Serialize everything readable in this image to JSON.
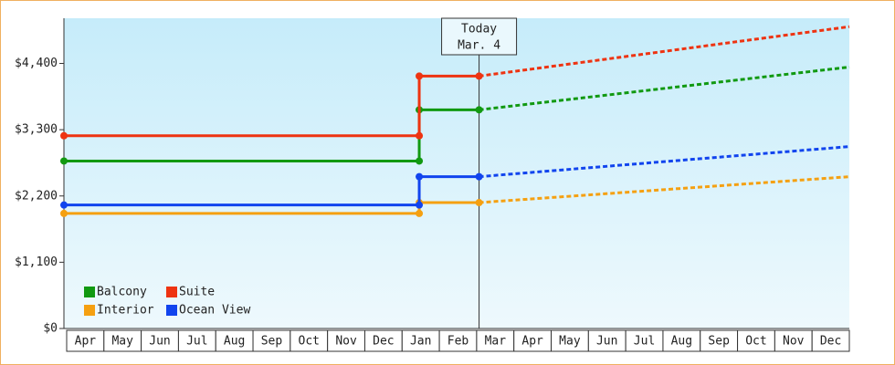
{
  "chart_data": {
    "type": "step-line",
    "categories": [
      "Apr",
      "May",
      "Jun",
      "Jul",
      "Aug",
      "Sep",
      "Oct",
      "Nov",
      "Dec",
      "Jan",
      "Feb",
      "Mar",
      "Apr",
      "May",
      "Jun",
      "Jul",
      "Aug",
      "Sep",
      "Oct",
      "Nov",
      "Dec"
    ],
    "xlim": [
      0,
      21
    ],
    "ylim": [
      0,
      5150
    ],
    "yticks": [
      {
        "value": 0,
        "label": "$0"
      },
      {
        "value": 1100,
        "label": "$1,100"
      },
      {
        "value": 2200,
        "label": "$2,200"
      },
      {
        "value": 3300,
        "label": "$3,300"
      },
      {
        "value": 4400,
        "label": "$4,400"
      }
    ],
    "annotation": {
      "x": 11.1,
      "lines": [
        "Today",
        "Mar. 4"
      ]
    },
    "legend": "lower left",
    "series": [
      {
        "name": "Balcony",
        "color": "#119911",
        "x": [
          0,
          9.5,
          9.5,
          11.1
        ],
        "values": [
          2780,
          2780,
          3630,
          3630
        ],
        "forecast_x": [
          11.1,
          21
        ],
        "forecast": [
          3630,
          4340
        ]
      },
      {
        "name": "Suite",
        "color": "#ee3311",
        "x": [
          0,
          9.5,
          9.5,
          11.1
        ],
        "values": [
          3200,
          3200,
          4190,
          4190
        ],
        "forecast_x": [
          11.1,
          21
        ],
        "forecast": [
          4190,
          5010
        ]
      },
      {
        "name": "Interior",
        "color": "#f5a011",
        "x": [
          0,
          9.5,
          9.5,
          11.1
        ],
        "values": [
          1910,
          1910,
          2090,
          2090
        ],
        "forecast_x": [
          11.1,
          21
        ],
        "forecast": [
          2090,
          2520
        ]
      },
      {
        "name": "Ocean View",
        "color": "#1144ee",
        "x": [
          0,
          9.5,
          9.5,
          11.1
        ],
        "values": [
          2050,
          2050,
          2520,
          2520
        ],
        "forecast_x": [
          11.1,
          21
        ],
        "forecast": [
          2520,
          3020
        ]
      }
    ]
  }
}
